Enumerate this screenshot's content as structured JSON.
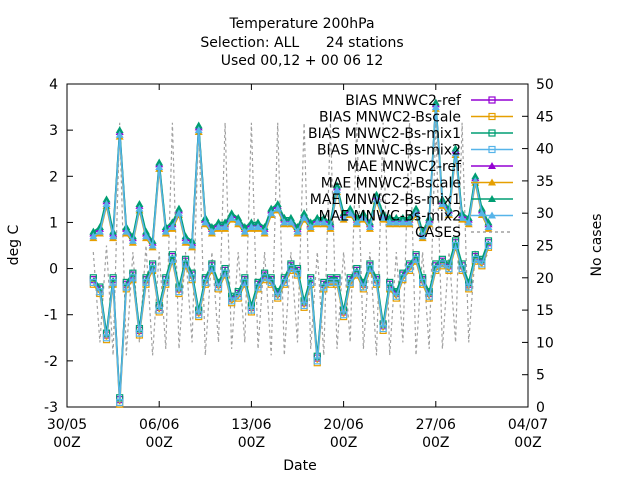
{
  "chart_data": {
    "type": "line",
    "title_lines": [
      "Temperature 200hPa",
      "Selection: ALL      24 stations",
      "Used 00,12 + 00 06 12"
    ],
    "xlabel": "Date",
    "ylabel": "deg C",
    "y2label": "No cases",
    "xlim": [
      "2024-05-30T00",
      "2024-07-04T00"
    ],
    "ylim": [
      -3,
      4
    ],
    "y2lim": [
      0,
      50
    ],
    "x_ticks": [
      {
        "top": "30/05",
        "bottom": "00Z",
        "date": "2024-05-30T00"
      },
      {
        "top": "06/06",
        "bottom": "00Z",
        "date": "2024-06-06T00"
      },
      {
        "top": "13/06",
        "bottom": "00Z",
        "date": "2024-06-13T00"
      },
      {
        "top": "20/06",
        "bottom": "00Z",
        "date": "2024-06-20T00"
      },
      {
        "top": "27/06",
        "bottom": "00Z",
        "date": "2024-06-27T00"
      },
      {
        "top": "04/07",
        "bottom": "00Z",
        "date": "2024-07-04T00"
      }
    ],
    "y_ticks": [
      "-3",
      "-2",
      "-1",
      "0",
      "1",
      "2",
      "3",
      "4"
    ],
    "y2_ticks": [
      "0",
      "5",
      "10",
      "15",
      "20",
      "25",
      "30",
      "35",
      "40",
      "45",
      "50"
    ],
    "legend_position": "top-right",
    "grid": false,
    "series": [
      {
        "name": "BIAS MNWC2-ref",
        "color": "#9400d3",
        "marker": "square-open"
      },
      {
        "name": "BIAS MNWC2-Bscale",
        "color": "#e69f00",
        "marker": "square-open"
      },
      {
        "name": "BIAS MNWC2-Bs-mix1",
        "color": "#009e73",
        "marker": "square-open"
      },
      {
        "name": "BIAS MNWC-Bs-mix2",
        "color": "#56b4e9",
        "marker": "square-open"
      },
      {
        "name": "MAE MNWC2-ref",
        "color": "#9400d3",
        "marker": "triangle"
      },
      {
        "name": "MAE MNWC2-Bscale",
        "color": "#e69f00",
        "marker": "triangle"
      },
      {
        "name": "MAE MNWC2-Bs-mix1",
        "color": "#009e73",
        "marker": "triangle"
      },
      {
        "name": "MAE MNWC-Bs-mix2",
        "color": "#56b4e9",
        "marker": "triangle"
      },
      {
        "name": "CASES",
        "color": "#a0a0a0",
        "marker": "none",
        "axis": "y2"
      }
    ],
    "observations": {
      "x": [
        "2024-06-01T00",
        "2024-06-01T12",
        "2024-06-02T00",
        "2024-06-02T12",
        "2024-06-03T00",
        "2024-06-03T12",
        "2024-06-04T00",
        "2024-06-04T12",
        "2024-06-05T00",
        "2024-06-05T12",
        "2024-06-06T00",
        "2024-06-06T12",
        "2024-06-07T00",
        "2024-06-07T12",
        "2024-06-08T00",
        "2024-06-08T12",
        "2024-06-09T00",
        "2024-06-09T12",
        "2024-06-10T00",
        "2024-06-10T12",
        "2024-06-11T00",
        "2024-06-11T12",
        "2024-06-12T00",
        "2024-06-12T12",
        "2024-06-13T00",
        "2024-06-13T12",
        "2024-06-14T00",
        "2024-06-14T12",
        "2024-06-15T00",
        "2024-06-15T12",
        "2024-06-16T00",
        "2024-06-16T12",
        "2024-06-17T00",
        "2024-06-17T12",
        "2024-06-18T00",
        "2024-06-18T12",
        "2024-06-19T00",
        "2024-06-19T12",
        "2024-06-20T00",
        "2024-06-20T12",
        "2024-06-21T00",
        "2024-06-21T12",
        "2024-06-22T00",
        "2024-06-22T12",
        "2024-06-23T00",
        "2024-06-23T12",
        "2024-06-24T00",
        "2024-06-24T12",
        "2024-06-25T00",
        "2024-06-25T12",
        "2024-06-26T00",
        "2024-06-26T12",
        "2024-06-27T00",
        "2024-06-27T12",
        "2024-06-28T00",
        "2024-06-28T12",
        "2024-06-29T00",
        "2024-06-29T12",
        "2024-06-30T00",
        "2024-06-30T12",
        "2024-07-01T00"
      ],
      "bias": [
        -0.3,
        -0.5,
        -1.5,
        -0.3,
        -2.9,
        -0.4,
        -0.2,
        -1.4,
        -0.3,
        0.0,
        -0.9,
        -0.3,
        0.2,
        -0.5,
        0.1,
        -0.2,
        -1.0,
        -0.3,
        0.0,
        -0.4,
        -0.1,
        -0.7,
        -0.6,
        -0.3,
        -0.9,
        -0.4,
        -0.2,
        -0.3,
        -0.6,
        -0.3,
        0.0,
        -0.1,
        -0.8,
        -0.3,
        -2.0,
        -0.4,
        -0.3,
        -0.3,
        -1.0,
        -0.3,
        -0.1,
        -0.4,
        0.0,
        -0.3,
        -1.3,
        -0.4,
        -0.6,
        -0.2,
        0.0,
        0.2,
        -0.3,
        -0.6,
        0.0,
        0.1,
        0.0,
        0.5,
        0.0,
        -0.4,
        0.2,
        0.1,
        0.5
      ],
      "mae": [
        0.7,
        0.8,
        1.4,
        0.7,
        2.9,
        0.8,
        0.6,
        1.3,
        0.7,
        0.5,
        2.2,
        0.8,
        0.9,
        1.2,
        0.6,
        0.5,
        3.0,
        1.0,
        0.8,
        0.9,
        0.9,
        1.1,
        1.0,
        0.8,
        0.9,
        0.9,
        0.8,
        1.2,
        1.3,
        1.0,
        1.0,
        0.8,
        1.1,
        0.9,
        1.0,
        1.0,
        0.9,
        1.7,
        1.1,
        1.2,
        1.0,
        1.1,
        0.9,
        1.5,
        1.1,
        1.0,
        1.0,
        1.0,
        1.0,
        1.2,
        0.7,
        1.0,
        3.5,
        1.4,
        1.2,
        2.5,
        1.1,
        1.0,
        1.9,
        1.2,
        0.9
      ],
      "cases": [
        24,
        10,
        25,
        8,
        44,
        8,
        24,
        10,
        25,
        8,
        24,
        9,
        44,
        9,
        24,
        10,
        44,
        8,
        24,
        10,
        44,
        9,
        24,
        10,
        44,
        9,
        24,
        8,
        44,
        8,
        24,
        10,
        44,
        9,
        24,
        8,
        44,
        9,
        24,
        10,
        44,
        9,
        24,
        8,
        44,
        8,
        24,
        10,
        44,
        8,
        24,
        9,
        44,
        9,
        24,
        10,
        44,
        10,
        24,
        22,
        24
      ]
    }
  }
}
